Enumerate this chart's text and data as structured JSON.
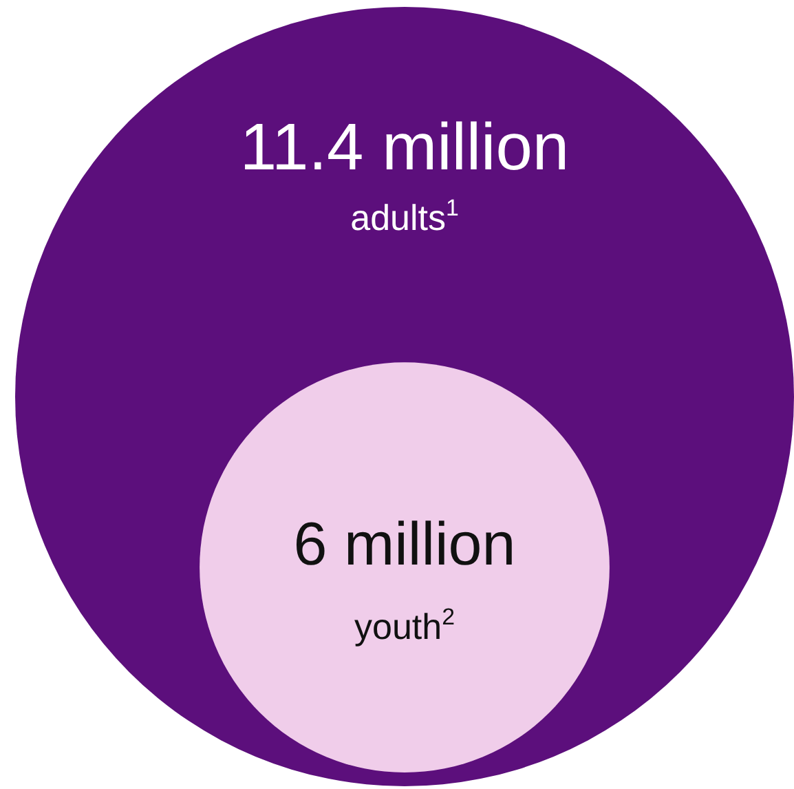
{
  "chart_data": {
    "type": "other",
    "categories": [
      "adults$^{1}$",
      "youth$^{2}$"
    ],
    "values": [
      11.4,
      6
    ],
    "value_labels": [
      "11.4 million",
      "6 million"
    ],
    "colors": [
      "#5c0f7c",
      "#f0cdea"
    ]
  }
}
